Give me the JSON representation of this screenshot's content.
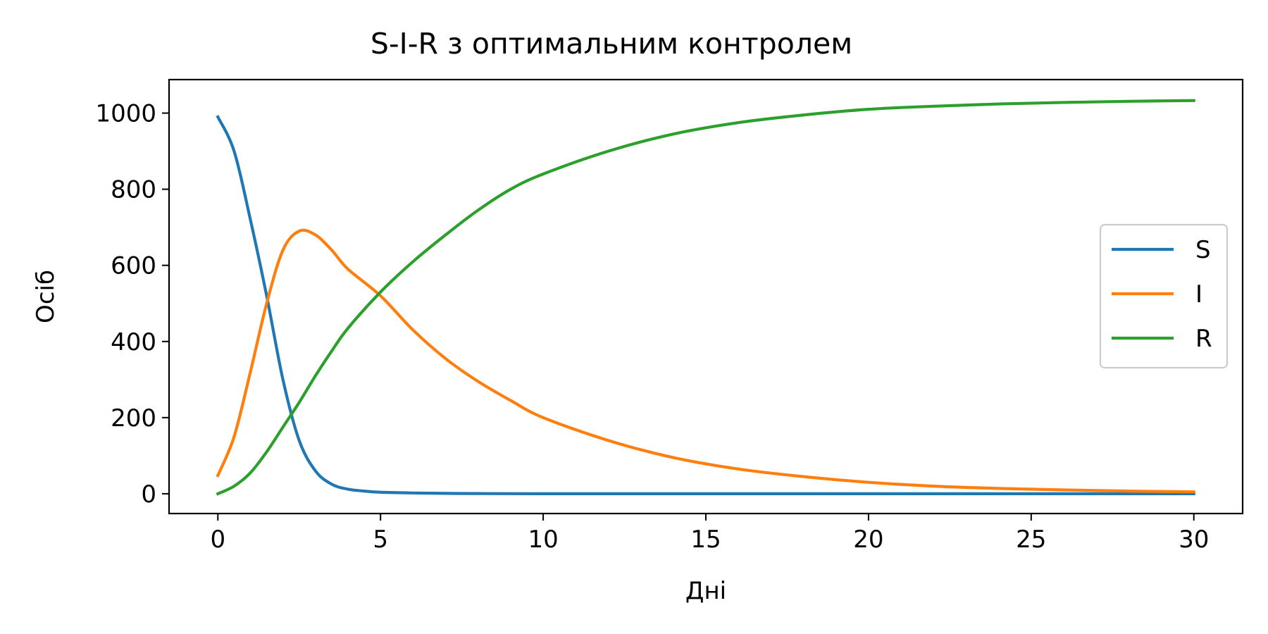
{
  "chart_data": {
    "type": "line",
    "title": "S-I-R з оптимальним контролем",
    "xlabel": "Дні",
    "ylabel": "Осіб",
    "xlim": [
      -1.5,
      31.5
    ],
    "ylim": [
      -52,
      1088
    ],
    "xticks": [
      0,
      5,
      10,
      15,
      20,
      25,
      30
    ],
    "yticks": [
      0,
      200,
      400,
      600,
      800,
      1000
    ],
    "grid": false,
    "legend_position": "center-right",
    "series": [
      {
        "name": "S",
        "color": "#1f77b4",
        "x": [
          0,
          0.5,
          1,
          1.5,
          2,
          2.5,
          3,
          3.5,
          4,
          4.5,
          5,
          6,
          7,
          8,
          10,
          15,
          20,
          25,
          30
        ],
        "y": [
          990,
          900,
          720,
          520,
          300,
          140,
          60,
          25,
          12,
          7,
          4,
          2,
          1,
          0.5,
          0,
          0,
          0,
          0,
          0
        ]
      },
      {
        "name": "I",
        "color": "#ff7f0e",
        "x": [
          0,
          0.5,
          1,
          1.5,
          2,
          2.5,
          3,
          3.5,
          4,
          5,
          6,
          7,
          8,
          9,
          10,
          12,
          14,
          16,
          18,
          20,
          22,
          24,
          26,
          28,
          30
        ],
        "y": [
          48,
          150,
          320,
          500,
          640,
          690,
          680,
          640,
          590,
          520,
          430,
          355,
          295,
          245,
          200,
          140,
          95,
          65,
          45,
          30,
          20,
          14,
          10,
          7,
          5
        ]
      },
      {
        "name": "R",
        "color": "#2ca02c",
        "x": [
          0,
          0.5,
          1,
          1.5,
          2,
          2.5,
          3,
          3.5,
          4,
          5,
          6,
          7,
          8,
          9,
          10,
          12,
          14,
          16,
          18,
          20,
          22,
          24,
          26,
          28,
          30
        ],
        "y": [
          0,
          20,
          55,
          110,
          175,
          240,
          310,
          375,
          435,
          530,
          610,
          680,
          745,
          800,
          840,
          900,
          945,
          975,
          995,
          1010,
          1018,
          1024,
          1028,
          1031,
          1033
        ]
      }
    ]
  }
}
